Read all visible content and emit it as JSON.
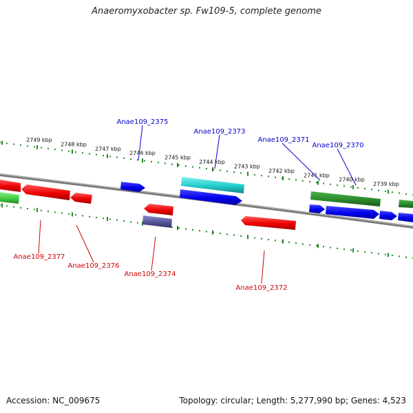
{
  "title": "Anaeromyxobacter sp. Fw109-5, complete genome",
  "accession_text": "Accession: NC_009675",
  "summary_text": "Topology: circular; Length: 5,277,990 bp; Genes: 4,523",
  "kbp_labels": [
    "2749 kbp",
    "2748 kbp",
    "2747 kbp",
    "2746 kbp",
    "2745 kbp",
    "2744 kbp",
    "2743 kbp",
    "2742 kbp",
    "2741 kbp",
    "2740 kbp",
    "2739 kbp"
  ],
  "genes_top": [
    {
      "label": "Anae109_2375",
      "color": "#0000cc"
    },
    {
      "label": "Anae109_2373",
      "color": "#0000cc"
    },
    {
      "label": "Anae109_2371",
      "color": "#0000cc"
    },
    {
      "label": "Anae109_2370",
      "color": "#0000cc"
    }
  ],
  "genes_bottom": [
    {
      "label": "Anae109_2377",
      "color": "#cc0000"
    },
    {
      "label": "Anae109_2376",
      "color": "#cc0000"
    },
    {
      "label": "Anae109_2374",
      "color": "#cc0000"
    },
    {
      "label": "Anae109_2372",
      "color": "#cc0000"
    }
  ],
  "colors": {
    "forward_gene": "#0000ee",
    "reverse_gene": "#ee0000",
    "rna_cyan": "#22cccc",
    "dark_green": "#2a8a2a",
    "light_green": "#44cc44",
    "purple": "#555599",
    "backbone": "#888888",
    "tick_green": "#228822"
  }
}
